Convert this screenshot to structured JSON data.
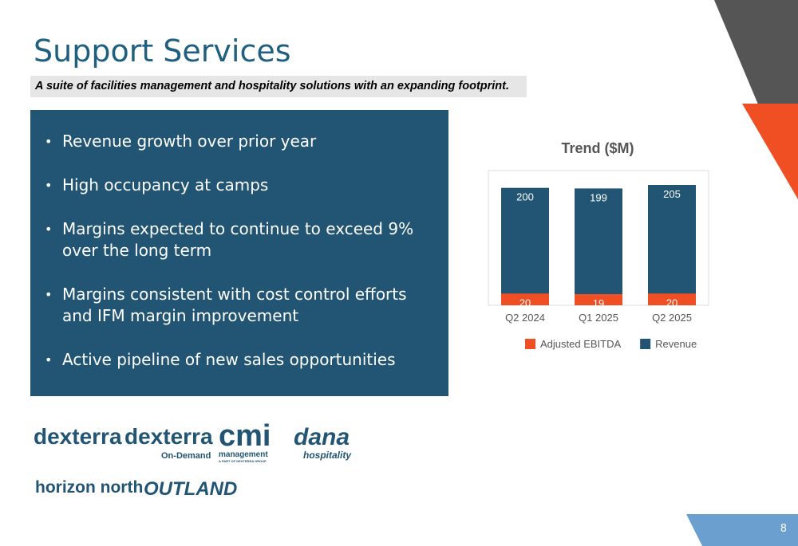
{
  "title": "Support Services",
  "subtitle": "A suite of facilities management and hospitality solutions with an expanding footprint.",
  "bullets": [
    "Revenue growth over prior year",
    "High occupancy at camps",
    "Margins expected to continue to exceed 9% over the long term",
    "Margins consistent with cost control efforts and IFM margin improvement",
    "Active pipeline of new sales opportunities"
  ],
  "logos": [
    "dexterra",
    "dexterra",
    "On-Demand",
    "cmi",
    "management",
    "A PART OF DEXTERRA GROUP",
    "dana",
    "hospitality",
    "horizon north",
    "OUTLAND"
  ],
  "page_number": "8",
  "chart_data": {
    "type": "bar",
    "title": "Trend ($M)",
    "categories": [
      "Q2 2024",
      "Q1 2025",
      "Q2 2025"
    ],
    "series": [
      {
        "name": "Adjusted EBITDA",
        "color": "#f04e23",
        "values": [
          20,
          19,
          20
        ]
      },
      {
        "name": "Revenue",
        "color": "#215573",
        "values": [
          200,
          199,
          205
        ]
      }
    ]
  }
}
